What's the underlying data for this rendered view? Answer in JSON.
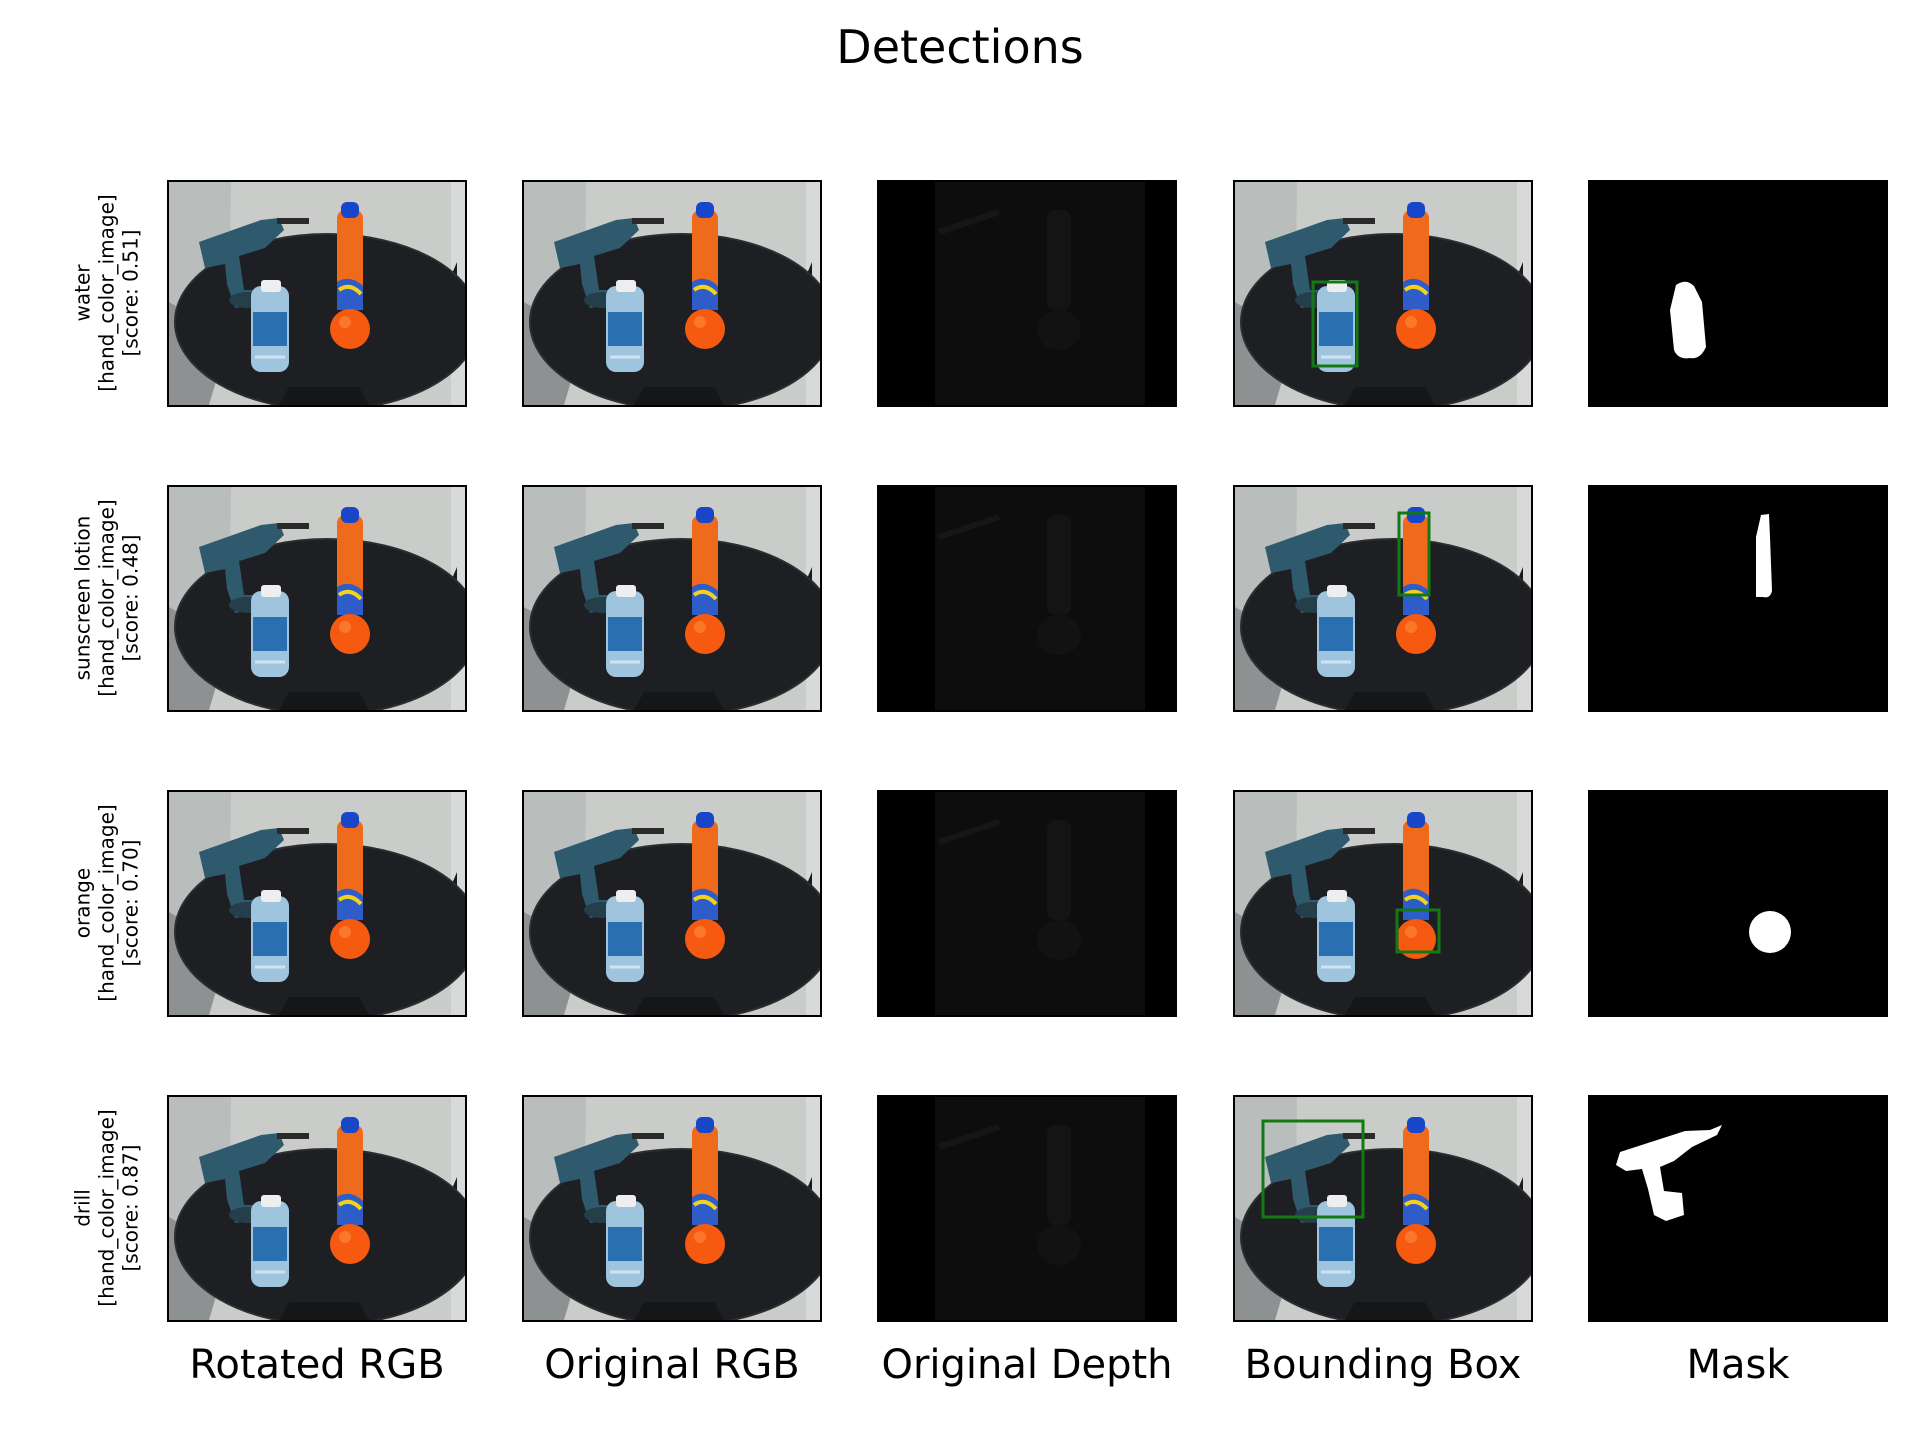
{
  "figure": {
    "title": "Detections",
    "columns": [
      "Rotated RGB",
      "Original RGB",
      "Original Depth",
      "Bounding Box",
      "Mask"
    ],
    "rows": [
      {
        "object": "water",
        "source": "[hand_color_image]",
        "score": "[score: 0.51]",
        "target": "bottle"
      },
      {
        "object": "sunscreen lotion",
        "source": "[hand_color_image]",
        "score": "[score: 0.48]",
        "target": "sunscreen"
      },
      {
        "object": "orange",
        "source": "[hand_color_image]",
        "score": "[score: 0.70]",
        "target": "orange"
      },
      {
        "object": "drill",
        "source": "[hand_color_image]",
        "score": "[score: 0.87]",
        "target": "drill"
      }
    ],
    "colors": {
      "box": "#137a13",
      "wall": "#c9ccc9",
      "table": "#1e1f22",
      "sunscreen": "#f06a1c",
      "cap": "#1846c8",
      "orange": "#f55a10",
      "drill": "#2f5a6e",
      "water_label": "#2a6fb0",
      "depth_bg": "#0d0d0d"
    }
  }
}
